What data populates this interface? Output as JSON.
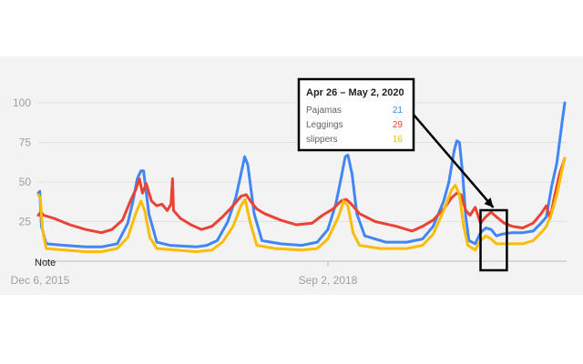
{
  "chart_data": {
    "type": "line",
    "ylim": [
      0,
      100
    ],
    "y_ticks": [
      25,
      50,
      75,
      100
    ],
    "grid": true,
    "x_tick_labels": [
      "Dec 6, 2015",
      "Sep 2, 2018"
    ],
    "note_label": "Note",
    "series": [
      {
        "name": "Pajamas",
        "color": "#4285f4",
        "points": [
          [
            0.0,
            43
          ],
          [
            0.003,
            44
          ],
          [
            0.006,
            22
          ],
          [
            0.015,
            11
          ],
          [
            0.05,
            10
          ],
          [
            0.09,
            9
          ],
          [
            0.12,
            9
          ],
          [
            0.15,
            11
          ],
          [
            0.17,
            24
          ],
          [
            0.18,
            38
          ],
          [
            0.188,
            52
          ],
          [
            0.195,
            57
          ],
          [
            0.2,
            57
          ],
          [
            0.21,
            30
          ],
          [
            0.225,
            12
          ],
          [
            0.25,
            10
          ],
          [
            0.3,
            9
          ],
          [
            0.32,
            10
          ],
          [
            0.34,
            13
          ],
          [
            0.36,
            25
          ],
          [
            0.375,
            40
          ],
          [
            0.385,
            55
          ],
          [
            0.392,
            66
          ],
          [
            0.398,
            61
          ],
          [
            0.41,
            30
          ],
          [
            0.425,
            13
          ],
          [
            0.46,
            11
          ],
          [
            0.5,
            10
          ],
          [
            0.53,
            12
          ],
          [
            0.55,
            20
          ],
          [
            0.565,
            36
          ],
          [
            0.575,
            52
          ],
          [
            0.583,
            66
          ],
          [
            0.588,
            67
          ],
          [
            0.596,
            55
          ],
          [
            0.605,
            30
          ],
          [
            0.62,
            16
          ],
          [
            0.66,
            12
          ],
          [
            0.7,
            12
          ],
          [
            0.73,
            14
          ],
          [
            0.75,
            22
          ],
          [
            0.77,
            38
          ],
          [
            0.78,
            50
          ],
          [
            0.79,
            70
          ],
          [
            0.795,
            76
          ],
          [
            0.8,
            75
          ],
          [
            0.806,
            55
          ],
          [
            0.812,
            28
          ],
          [
            0.818,
            13
          ],
          [
            0.83,
            11
          ],
          [
            0.84,
            18
          ],
          [
            0.85,
            21
          ],
          [
            0.86,
            20
          ],
          [
            0.87,
            16
          ],
          [
            0.88,
            17
          ],
          [
            0.9,
            18
          ],
          [
            0.92,
            18
          ],
          [
            0.94,
            19
          ],
          [
            0.955,
            24
          ],
          [
            0.965,
            28
          ],
          [
            0.975,
            47
          ],
          [
            0.985,
            62
          ],
          [
            0.995,
            88
          ],
          [
            1.0,
            100
          ]
        ]
      },
      {
        "name": "Leggings",
        "color": "#ea4335",
        "points": [
          [
            0.0,
            29
          ],
          [
            0.005,
            31
          ],
          [
            0.01,
            29
          ],
          [
            0.03,
            27
          ],
          [
            0.06,
            23
          ],
          [
            0.09,
            20
          ],
          [
            0.12,
            18
          ],
          [
            0.14,
            20
          ],
          [
            0.16,
            26
          ],
          [
            0.175,
            38
          ],
          [
            0.185,
            45
          ],
          [
            0.192,
            52
          ],
          [
            0.198,
            43
          ],
          [
            0.205,
            49
          ],
          [
            0.215,
            38
          ],
          [
            0.225,
            35
          ],
          [
            0.235,
            36
          ],
          [
            0.245,
            32
          ],
          [
            0.252,
            36
          ],
          [
            0.255,
            52
          ],
          [
            0.257,
            32
          ],
          [
            0.27,
            27
          ],
          [
            0.29,
            23
          ],
          [
            0.31,
            20
          ],
          [
            0.33,
            22
          ],
          [
            0.35,
            28
          ],
          [
            0.37,
            35
          ],
          [
            0.385,
            41
          ],
          [
            0.395,
            42
          ],
          [
            0.405,
            37
          ],
          [
            0.415,
            33
          ],
          [
            0.43,
            30
          ],
          [
            0.46,
            26
          ],
          [
            0.49,
            23
          ],
          [
            0.52,
            24
          ],
          [
            0.54,
            29
          ],
          [
            0.56,
            33
          ],
          [
            0.575,
            38
          ],
          [
            0.585,
            39
          ],
          [
            0.595,
            36
          ],
          [
            0.61,
            30
          ],
          [
            0.64,
            25
          ],
          [
            0.68,
            22
          ],
          [
            0.71,
            19
          ],
          [
            0.73,
            22
          ],
          [
            0.75,
            26
          ],
          [
            0.77,
            33
          ],
          [
            0.785,
            40
          ],
          [
            0.795,
            43
          ],
          [
            0.803,
            42
          ],
          [
            0.812,
            32
          ],
          [
            0.82,
            29
          ],
          [
            0.83,
            34
          ],
          [
            0.84,
            24
          ],
          [
            0.85,
            28
          ],
          [
            0.86,
            31
          ],
          [
            0.87,
            28
          ],
          [
            0.885,
            24
          ],
          [
            0.9,
            22
          ],
          [
            0.92,
            21
          ],
          [
            0.94,
            24
          ],
          [
            0.955,
            30
          ],
          [
            0.965,
            35
          ],
          [
            0.972,
            27
          ],
          [
            0.98,
            40
          ],
          [
            0.99,
            55
          ],
          [
            1.0,
            65
          ]
        ]
      },
      {
        "name": "slippers",
        "color": "#fbbc04",
        "points": [
          [
            0.0,
            42
          ],
          [
            0.004,
            40
          ],
          [
            0.008,
            20
          ],
          [
            0.015,
            8
          ],
          [
            0.05,
            7
          ],
          [
            0.09,
            6
          ],
          [
            0.12,
            6
          ],
          [
            0.15,
            8
          ],
          [
            0.17,
            15
          ],
          [
            0.185,
            30
          ],
          [
            0.195,
            38
          ],
          [
            0.202,
            32
          ],
          [
            0.212,
            15
          ],
          [
            0.225,
            8
          ],
          [
            0.26,
            7
          ],
          [
            0.3,
            6
          ],
          [
            0.33,
            7
          ],
          [
            0.35,
            12
          ],
          [
            0.37,
            22
          ],
          [
            0.385,
            35
          ],
          [
            0.393,
            39
          ],
          [
            0.402,
            25
          ],
          [
            0.415,
            10
          ],
          [
            0.45,
            8
          ],
          [
            0.5,
            7
          ],
          [
            0.53,
            8
          ],
          [
            0.55,
            14
          ],
          [
            0.57,
            28
          ],
          [
            0.58,
            38
          ],
          [
            0.588,
            35
          ],
          [
            0.598,
            18
          ],
          [
            0.61,
            10
          ],
          [
            0.65,
            8
          ],
          [
            0.7,
            8
          ],
          [
            0.73,
            10
          ],
          [
            0.75,
            17
          ],
          [
            0.77,
            32
          ],
          [
            0.785,
            45
          ],
          [
            0.792,
            48
          ],
          [
            0.8,
            42
          ],
          [
            0.808,
            22
          ],
          [
            0.816,
            10
          ],
          [
            0.83,
            7
          ],
          [
            0.84,
            13
          ],
          [
            0.85,
            16
          ],
          [
            0.86,
            14
          ],
          [
            0.87,
            11
          ],
          [
            0.89,
            11
          ],
          [
            0.92,
            11
          ],
          [
            0.94,
            13
          ],
          [
            0.955,
            18
          ],
          [
            0.965,
            22
          ],
          [
            0.975,
            30
          ],
          [
            0.985,
            42
          ],
          [
            0.995,
            58
          ],
          [
            1.0,
            65
          ]
        ]
      }
    ],
    "tooltip": {
      "title": "Apr 26 – May 2, 2020",
      "rows": [
        {
          "name": "Pajamas",
          "value": "21",
          "color": "#4285f4"
        },
        {
          "name": "Leggings",
          "value": "29",
          "color": "#ea4335"
        },
        {
          "name": "slippers",
          "value": "16",
          "color": "#fbbc04"
        }
      ]
    },
    "highlight_range_x": [
      0.84,
      0.89
    ]
  }
}
